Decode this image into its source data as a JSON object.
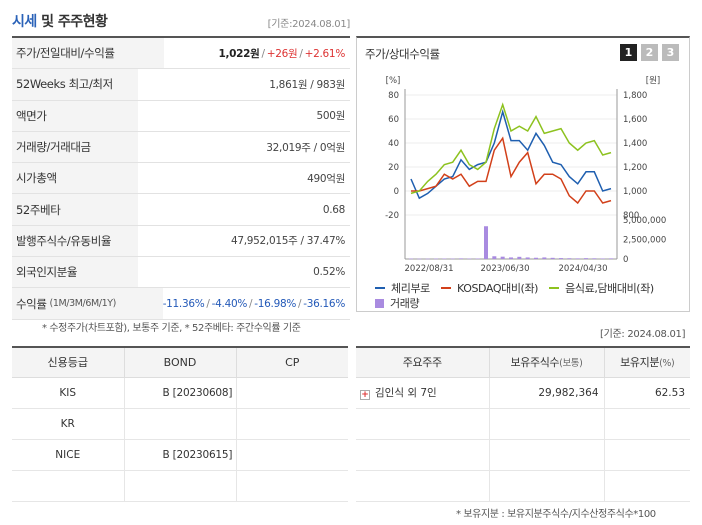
{
  "header": {
    "title_accent": "시세",
    "title_rest": " 및 주주현황",
    "base_date": "[기준:2024.08.01]"
  },
  "info": {
    "price_row_label": "주가/전일대비/수익률",
    "price": "1,022원",
    "change": "+26원",
    "change_rate": "+2.61%",
    "week52_label": "52Weeks 최고/최저",
    "week52_value": "1,861원 / 983원",
    "face_label": "액면가",
    "face_value": "500원",
    "volume_label": "거래량/거래대금",
    "volume_value": "32,019주 / 0억원",
    "cap_label": "시가총액",
    "cap_value": "490억원",
    "beta_label": "52주베타",
    "beta_value": "0.68",
    "shares_label": "발행주식수/유동비율",
    "shares_value": "47,952,015주 / 37.47%",
    "foreign_label": "외국인지분율",
    "foreign_value": "0.52%",
    "return_label": "수익률",
    "return_period": "(1M/3M/6M/1Y)",
    "returns": [
      "-11.36%",
      "-4.40%",
      "-16.98%",
      "-36.16%"
    ]
  },
  "note_left": "* 수정주가(차트포함), 보통주 기준, * 52주베타: 주간수익률 기준",
  "chart_panel": {
    "title": "주가/상대수익률",
    "pages": [
      "1",
      "2",
      "3"
    ],
    "active_page": 0
  },
  "chart_data": {
    "type": "line",
    "left_unit": "[%]",
    "right_unit": "[원]",
    "left_ticks": [
      "80",
      "60",
      "40",
      "20",
      "0",
      "-20"
    ],
    "right_ticks": [
      "1,800",
      "1,600",
      "1,400",
      "1,200",
      "1,000",
      "800"
    ],
    "volume_ticks": [
      "5,000,000",
      "2,500,000",
      "0"
    ],
    "x_labels": [
      "2022/08/31",
      "2023/06/30",
      "2024/04/30"
    ],
    "ylim_left": [
      -20,
      80
    ],
    "ylim_volume": [
      0,
      5000000
    ],
    "series": [
      {
        "name": "체리부로",
        "color": "#1f5fb0",
        "values": [
          10,
          -6,
          -2,
          4,
          10,
          12,
          26,
          18,
          22,
          24,
          40,
          66,
          42,
          42,
          34,
          48,
          38,
          24,
          22,
          12,
          6,
          16,
          16,
          0,
          2
        ]
      },
      {
        "name": "KOSDAQ대비(좌)",
        "color": "#d2401a",
        "values": [
          0,
          0,
          2,
          4,
          14,
          10,
          14,
          4,
          8,
          8,
          34,
          44,
          12,
          24,
          32,
          6,
          14,
          14,
          10,
          -4,
          -10,
          0,
          0,
          -10,
          -8
        ]
      },
      {
        "name": "음식료,담배대비(좌)",
        "color": "#8dc21f",
        "values": [
          -2,
          0,
          8,
          14,
          22,
          24,
          34,
          22,
          18,
          24,
          52,
          72,
          50,
          54,
          50,
          62,
          48,
          50,
          52,
          40,
          34,
          40,
          42,
          30,
          32
        ]
      }
    ],
    "volume": {
      "name": "거래량",
      "color": "#a98be0",
      "values": [
        50000,
        40000,
        40000,
        50000,
        60000,
        50000,
        80000,
        60000,
        60000,
        4200000,
        350000,
        300000,
        200000,
        280000,
        200000,
        160000,
        200000,
        150000,
        120000,
        100000,
        80000,
        110000,
        90000,
        70000,
        80000
      ]
    }
  },
  "base_date_mid": "[기준: 2024.08.01]",
  "credit": {
    "headers": [
      "신용등급",
      "BOND",
      "CP"
    ],
    "rows": [
      {
        "agency": "KIS",
        "bond": "B  [20230608]",
        "cp": ""
      },
      {
        "agency": "KR",
        "bond": "",
        "cp": ""
      },
      {
        "agency": "NICE",
        "bond": "B  [20230615]",
        "cp": ""
      },
      {
        "agency": "",
        "bond": "",
        "cp": ""
      }
    ]
  },
  "holders": {
    "header_holder": "주요주주",
    "header_shares": "보유주식수",
    "header_shares_unit": "(보통)",
    "header_ratio": "보유지분",
    "header_ratio_unit": "(%)",
    "rows": [
      {
        "name": "김인식 외 7인",
        "shares": "29,982,364",
        "ratio": "62.53"
      }
    ]
  },
  "note_bottom": "* 보유지분 : 보유지분주식수/지수산정주식수*100"
}
